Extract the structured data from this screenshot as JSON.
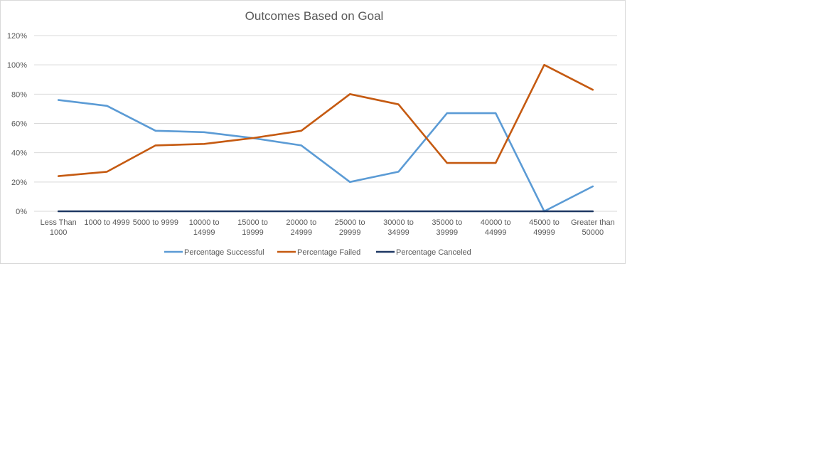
{
  "chart_data": {
    "type": "line",
    "title": "Outcomes Based on Goal",
    "xlabel": "",
    "ylabel": "",
    "categories": [
      "Less Than 1000",
      "1000 to 4999",
      "5000 to 9999",
      "10000 to 14999",
      "15000 to 19999",
      "20000 to 24999",
      "25000 to 29999",
      "30000 to 34999",
      "35000 to 39999",
      "40000 to 44999",
      "45000 to 49999",
      "Greater than 50000"
    ],
    "category_label_lines": [
      [
        "Less Than",
        "1000"
      ],
      [
        "1000 to 4999"
      ],
      [
        "5000 to 9999"
      ],
      [
        "10000 to",
        "14999"
      ],
      [
        "15000 to",
        "19999"
      ],
      [
        "20000 to",
        "24999"
      ],
      [
        "25000 to",
        "29999"
      ],
      [
        "30000 to",
        "34999"
      ],
      [
        "35000 to",
        "39999"
      ],
      [
        "40000 to",
        "44999"
      ],
      [
        "45000 to",
        "49999"
      ],
      [
        "Greater than",
        "50000"
      ]
    ],
    "ylim": [
      0,
      120
    ],
    "yticks": [
      0,
      20,
      40,
      60,
      80,
      100,
      120
    ],
    "ytick_labels": [
      "0%",
      "20%",
      "40%",
      "60%",
      "80%",
      "100%",
      "120%"
    ],
    "grid": true,
    "legend_position": "bottom",
    "series": [
      {
        "name": "Percentage Successful",
        "color": "#5b9bd5",
        "values": [
          76,
          72,
          55,
          54,
          50,
          45,
          20,
          27,
          67,
          67,
          0,
          17
        ]
      },
      {
        "name": "Percentage Failed",
        "color": "#c55a11",
        "values": [
          24,
          27,
          45,
          46,
          50,
          55,
          80,
          73,
          33,
          33,
          100,
          83
        ]
      },
      {
        "name": "Percentage Canceled",
        "color": "#1f3864",
        "values": [
          0,
          0,
          0,
          0,
          0,
          0,
          0,
          0,
          0,
          0,
          0,
          0
        ]
      }
    ]
  }
}
